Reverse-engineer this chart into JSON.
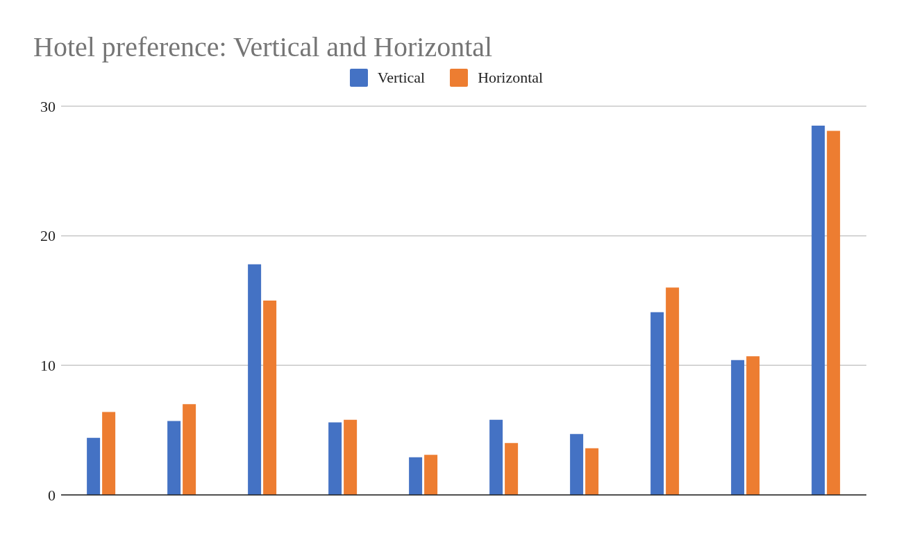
{
  "chart_data": {
    "type": "bar",
    "title": "Hotel preference: Vertical and Horizontal",
    "categories": [
      null,
      null,
      null,
      null,
      null,
      null,
      null,
      null,
      null,
      null
    ],
    "series": [
      {
        "name": "Vertical",
        "color": "#4472c4",
        "values": [
          4.4,
          5.7,
          17.8,
          5.6,
          2.9,
          5.8,
          4.7,
          14.1,
          10.4,
          28.5
        ]
      },
      {
        "name": "Horizontal",
        "color": "#ed7d31",
        "values": [
          6.4,
          7.0,
          15.0,
          5.8,
          3.1,
          4.0,
          3.6,
          16.0,
          10.7,
          28.1
        ]
      }
    ],
    "ylim": [
      0,
      30
    ],
    "yticks": [
      0,
      10,
      20,
      30
    ],
    "grid": "y",
    "legend": "top",
    "tick_labels": "y"
  }
}
